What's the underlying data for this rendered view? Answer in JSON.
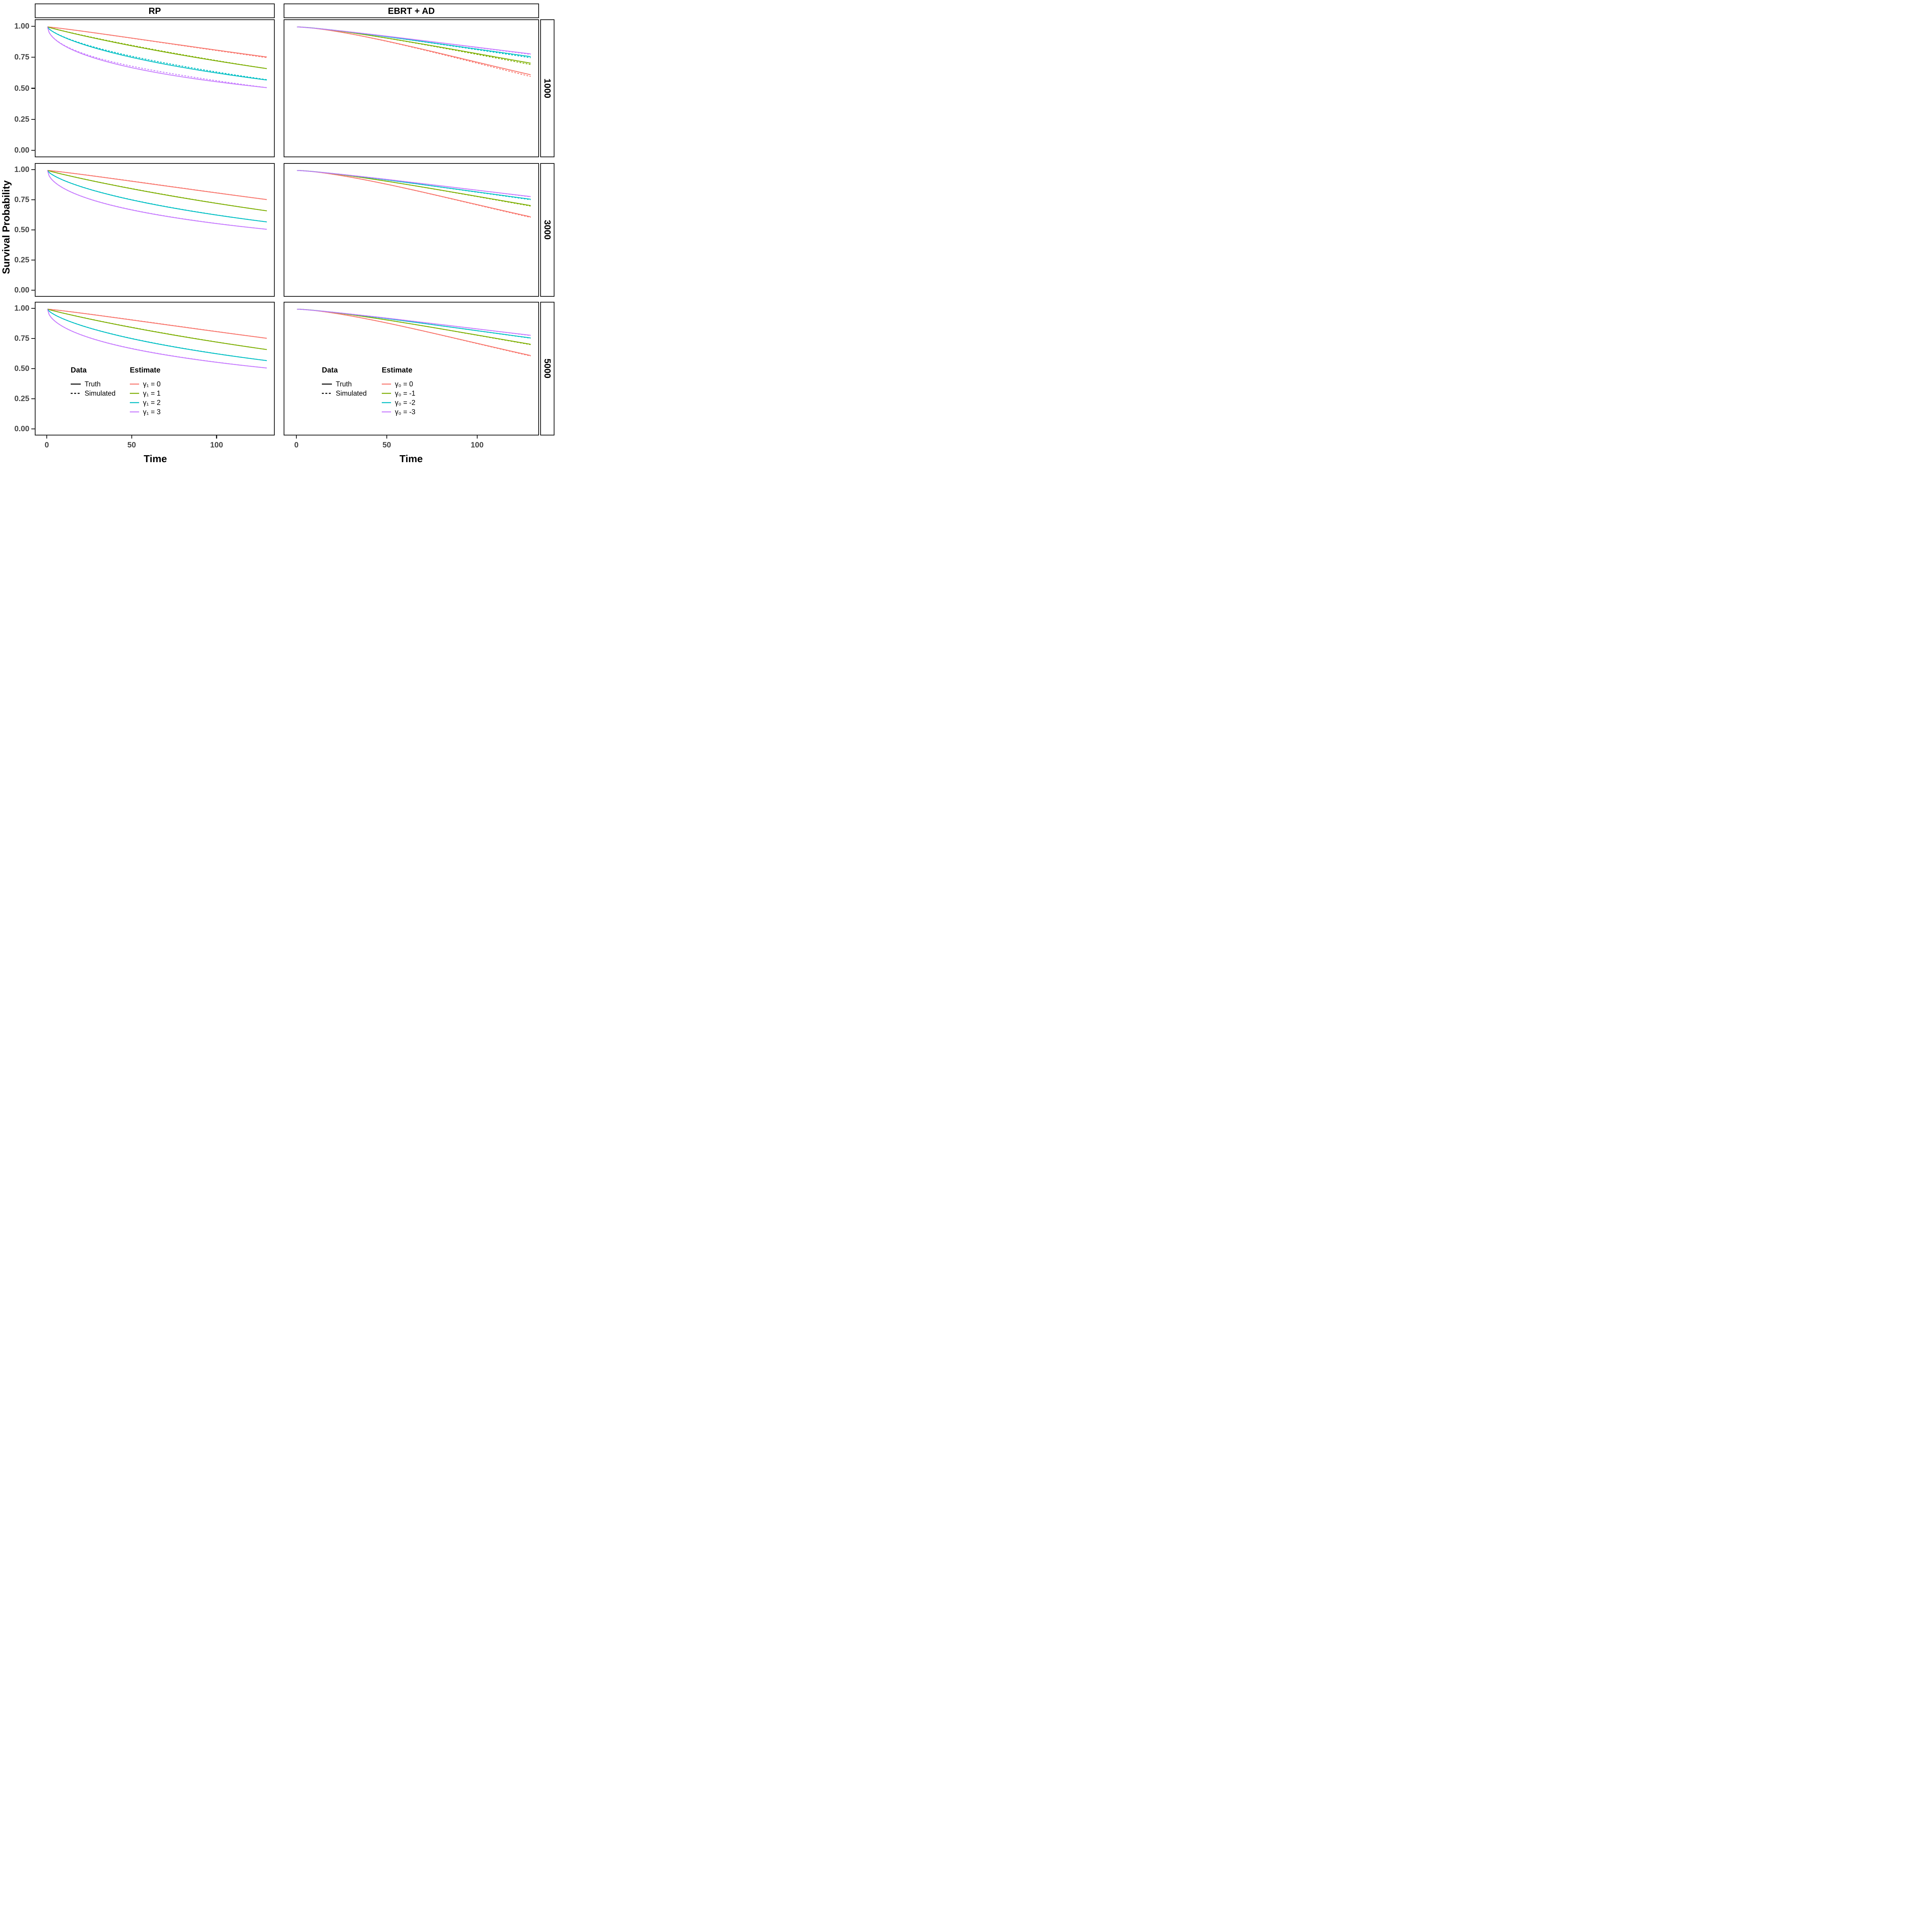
{
  "figure": {
    "axes": {
      "x_title": "Time",
      "y_title": "Survival Probability"
    },
    "facets": {
      "columns": [
        {
          "label": "RP"
        },
        {
          "label": "EBRT + AD"
        }
      ],
      "rows": [
        {
          "label": "1000"
        },
        {
          "label": "3000"
        },
        {
          "label": "5000"
        }
      ]
    }
  },
  "legends": {
    "rp": {
      "data_header": "Data",
      "data_items": [
        {
          "label": "Truth",
          "linetype": "solid"
        },
        {
          "label": "Simulated",
          "linetype": "dashed"
        }
      ],
      "estimate_header": "Estimate",
      "estimate_items": [
        {
          "label": "γ₁ = 0",
          "color": "#F8766D"
        },
        {
          "label": "γ₁ = 1",
          "color": "#7CAE00"
        },
        {
          "label": "γ₁ = 2",
          "color": "#00BFC4"
        },
        {
          "label": "γ₁ = 3",
          "color": "#C77CFF"
        }
      ]
    },
    "ebrt": {
      "data_header": "Data",
      "data_items": [
        {
          "label": "Truth",
          "linetype": "solid"
        },
        {
          "label": "Simulated",
          "linetype": "dashed"
        }
      ],
      "estimate_header": "Estimate",
      "estimate_items": [
        {
          "label": "γ₀ = 0",
          "color": "#F8766D"
        },
        {
          "label": "γ₀ = -1",
          "color": "#7CAE00"
        },
        {
          "label": "γ₀ = -2",
          "color": "#00BFC4"
        },
        {
          "label": "γ₀ = -3",
          "color": "#C77CFF"
        }
      ]
    }
  },
  "chart_data": {
    "type": "line",
    "title": "",
    "xlabel": "Time",
    "ylabel": "Survival Probability",
    "x_range": [
      0,
      130
    ],
    "x_ticks": [
      0,
      50,
      100
    ],
    "y_range": [
      0,
      1
    ],
    "y_ticks": [
      {
        "value": 1.0,
        "label": "1.00"
      },
      {
        "value": 0.75,
        "label": "0.75"
      },
      {
        "value": 0.5,
        "label": "0.50"
      },
      {
        "value": 0.25,
        "label": "0.25"
      },
      {
        "value": 0.0,
        "label": "0.00"
      }
    ],
    "facet_columns": [
      "RP",
      "EBRT + AD"
    ],
    "facet_rows": [
      "1000",
      "3000",
      "5000"
    ],
    "linetype_legend": {
      "Truth": "solid",
      "Simulated": "dashed"
    },
    "t_samples": [
      0,
      13,
      26,
      39,
      52,
      65,
      78,
      91,
      104,
      117,
      130
    ],
    "columns": {
      "RP": {
        "series": [
          {
            "id": "gamma1-0",
            "label": "γ₁ = 0",
            "color": "#F8766D",
            "model": {
              "a": 0.281,
              "p": 1.13
            },
            "truth_values": [
              1,
              0.979,
              0.955,
              0.931,
              0.905,
              0.88,
              0.854,
              0.829,
              0.804,
              0.779,
              0.755
            ]
          },
          {
            "id": "gamma1-1",
            "label": "γ₁ = 1",
            "color": "#7CAE00",
            "model": {
              "a": 0.415,
              "p": 0.95
            },
            "truth_values": [
              1,
              0.954,
              0.914,
              0.876,
              0.84,
              0.807,
              0.775,
              0.744,
              0.715,
              0.687,
              0.66
            ]
          },
          {
            "id": "gamma1-2",
            "label": "γ₁ = 2",
            "color": "#00BFC4",
            "model": {
              "a": 0.567,
              "p": 0.72
            },
            "truth_values": [
              1,
              0.898,
              0.837,
              0.788,
              0.746,
              0.709,
              0.675,
              0.645,
              0.617,
              0.591,
              0.567
            ]
          },
          {
            "id": "gamma1-3",
            "label": "γ₁ = 3",
            "color": "#C77CFF",
            "model": {
              "a": 0.683,
              "p": 0.55
            },
            "truth_values": [
              1,
              0.825,
              0.755,
              0.703,
              0.662,
              0.627,
              0.597,
              0.571,
              0.547,
              0.525,
              0.505
            ]
          }
        ],
        "simulated_offsets_by_row": {
          "1000": [
            {
              "sin": 0,
              "ramp": -0.005
            },
            {
              "sin": 0.004,
              "ramp": 0
            },
            {
              "sin": 0.009,
              "ramp": 0.003
            },
            {
              "sin": 0.013,
              "ramp": 0
            }
          ],
          "3000": [
            {
              "sin": 0.0015,
              "ramp": 0
            },
            {
              "sin": 0.0015,
              "ramp": 0
            },
            {
              "sin": 0.0015,
              "ramp": 0
            },
            {
              "sin": 0.0015,
              "ramp": 0
            }
          ],
          "5000": [
            {
              "sin": 0.0015,
              "ramp": 0
            },
            {
              "sin": 0.0015,
              "ramp": 0
            },
            {
              "sin": 0.0015,
              "ramp": 0
            },
            {
              "sin": 0.0015,
              "ramp": 0
            }
          ]
        }
      },
      "EBRT + AD": {
        "series": [
          {
            "id": "gamma0-0",
            "label": "γ₀ = 0",
            "color": "#F8766D",
            "model": {
              "a": 0.494,
              "p": 1.45
            },
            "truth_values": [
              1,
              0.983,
              0.953,
              0.917,
              0.877,
              0.835,
              0.79,
              0.745,
              0.699,
              0.654,
              0.61
            ]
          },
          {
            "id": "gamma0-n1",
            "label": "γ₀ = -1",
            "color": "#7CAE00",
            "model": {
              "a": 0.35,
              "p": 1.36
            },
            "truth_values": [
              1,
              0.985,
              0.962,
              0.934,
              0.904,
              0.872,
              0.84,
              0.806,
              0.772,
              0.738,
              0.705
            ]
          },
          {
            "id": "gamma0-n2",
            "label": "γ₀ = -2",
            "color": "#00BFC4",
            "model": {
              "a": 0.277,
              "p": 1.26
            },
            "truth_values": [
              1,
              0.985,
              0.964,
              0.941,
              0.916,
              0.891,
              0.865,
              0.838,
              0.811,
              0.785,
              0.758
            ]
          },
          {
            "id": "gamma0-n3",
            "label": "γ₀ = -3",
            "color": "#C77CFF",
            "model": {
              "a": 0.248,
              "p": 1.2
            },
            "truth_values": [
              1,
              0.985,
              0.965,
              0.943,
              0.921,
              0.898,
              0.874,
              0.851,
              0.827,
              0.804,
              0.78
            ]
          }
        ],
        "simulated_offsets_by_row": {
          "1000": [
            {
              "sin": 0.002,
              "ramp": -0.014
            },
            {
              "sin": 0.002,
              "ramp": -0.011
            },
            {
              "sin": 0.002,
              "ramp": -0.009
            },
            {
              "sin": 0.001,
              "ramp": -0.004
            }
          ],
          "3000": [
            {
              "sin": 0.001,
              "ramp": -0.005
            },
            {
              "sin": 0.001,
              "ramp": -0.004
            },
            {
              "sin": 0.001,
              "ramp": -0.004
            },
            {
              "sin": 0.001,
              "ramp": -0.002
            }
          ],
          "5000": [
            {
              "sin": 0.001,
              "ramp": -0.004
            },
            {
              "sin": 0.001,
              "ramp": -0.003
            },
            {
              "sin": 0.001,
              "ramp": -0.002
            },
            {
              "sin": 0.001,
              "ramp": -0.002
            }
          ]
        }
      }
    }
  }
}
